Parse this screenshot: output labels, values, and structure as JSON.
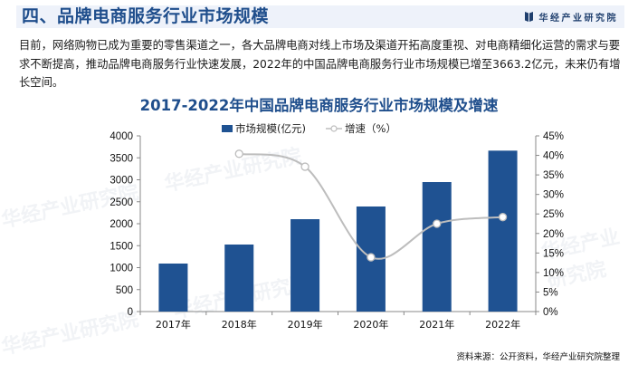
{
  "header": {
    "title": "四、品牌电商服务行业市场规模",
    "brand": "华经产业研究院",
    "brand_icon": "book-logo-icon",
    "accent_color": "#1f4e8c",
    "band_color": "#eef2fa"
  },
  "intro": {
    "text": "目前，网络购物已成为重要的零售渠道之一，各大品牌电商对线上市场及渠道开拓高度重视、对电商精细化运营的需求与要求不断提高，推动品牌电商服务行业快速发展，2022年的中国品牌电商服务行业市场规模已增至3663.2亿元，未来仍有增长空间。"
  },
  "chart": {
    "title": "2017-2022年中国品牌电商服务行业市场规模及增速",
    "legend": {
      "bar_label": "市场规模(亿元)",
      "line_label": "增速（%）"
    },
    "left_ticks": [
      "0",
      "500",
      "1000",
      "1500",
      "2000",
      "2500",
      "3000",
      "3500",
      "4000"
    ],
    "right_ticks": [
      "0%",
      "5%",
      "10%",
      "15%",
      "20%",
      "25%",
      "30%",
      "35%",
      "40%",
      "45%"
    ],
    "x_labels": [
      "2017年",
      "2018年",
      "2019年",
      "2020年",
      "2021年",
      "2022年"
    ],
    "bar_color": "#1f5292",
    "line_color": "#bdbdbd"
  },
  "chart_data": {
    "type": "bar",
    "title": "2017-2022年中国品牌电商服务行业市场规模及增速",
    "categories": [
      "2017年",
      "2018年",
      "2019年",
      "2020年",
      "2021年",
      "2022年"
    ],
    "series": [
      {
        "name": "市场规模(亿元)",
        "type": "bar",
        "axis": "left",
        "values": [
          1093,
          1526,
          2103,
          2392,
          2948,
          3663.2
        ]
      },
      {
        "name": "增速（%）",
        "type": "line",
        "axis": "right",
        "values": [
          null,
          40.4,
          37.1,
          13.9,
          22.5,
          24.2
        ]
      }
    ],
    "xlabel": "",
    "ylabel_left": "",
    "ylabel_right": "",
    "ylim_left": [
      0,
      4000
    ],
    "ylim_right": [
      0,
      45
    ],
    "grid": false,
    "legend_position": "top"
  },
  "footer": {
    "source": "资料来源：公开资料，华经产业研究院整理"
  }
}
